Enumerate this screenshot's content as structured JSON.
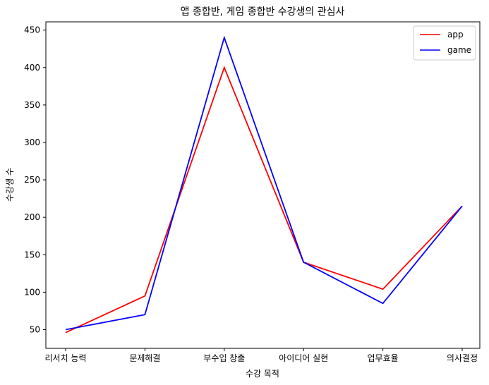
{
  "chart_data": {
    "type": "line",
    "title": "앱 종합반, 게임 종합반 수강생의 관심사",
    "xlabel": "수강 목적",
    "ylabel": "수강생 수",
    "categories": [
      "리서치 능력",
      "문제해결",
      "부수입 창출",
      "아이디어 실현",
      "업무효율",
      "의사결정"
    ],
    "series": [
      {
        "name": "app",
        "color": "#ff0000",
        "values": [
          46,
          95,
          400,
          140,
          104,
          215
        ]
      },
      {
        "name": "game",
        "color": "#0000ff",
        "values": [
          50,
          70,
          440,
          140,
          85,
          215
        ]
      }
    ],
    "ylim": [
      25,
      461
    ],
    "yticks": [
      50,
      100,
      150,
      200,
      250,
      300,
      350,
      400,
      450
    ],
    "grid": false,
    "legend": "top-right"
  }
}
